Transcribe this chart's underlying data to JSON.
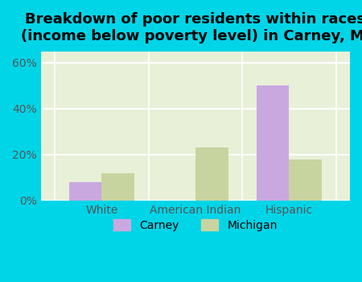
{
  "title": "Breakdown of poor residents within races\n(income below poverty level) in Carney, MI",
  "categories": [
    "White",
    "American Indian",
    "Hispanic"
  ],
  "carney_values": [
    8.0,
    0.0,
    50.0
  ],
  "michigan_values": [
    12.0,
    23.0,
    18.0
  ],
  "carney_color": "#c9a8e0",
  "michigan_color": "#c8d4a0",
  "background_outer": "#00d5e8",
  "background_inner": "#e8f0d8",
  "ylim": [
    0,
    65
  ],
  "yticks": [
    0,
    20,
    40,
    60
  ],
  "ytick_labels": [
    "0%",
    "20%",
    "40%",
    "60%"
  ],
  "bar_width": 0.35,
  "legend_labels": [
    "Carney",
    "Michigan"
  ],
  "title_fontsize": 13,
  "tick_fontsize": 10
}
